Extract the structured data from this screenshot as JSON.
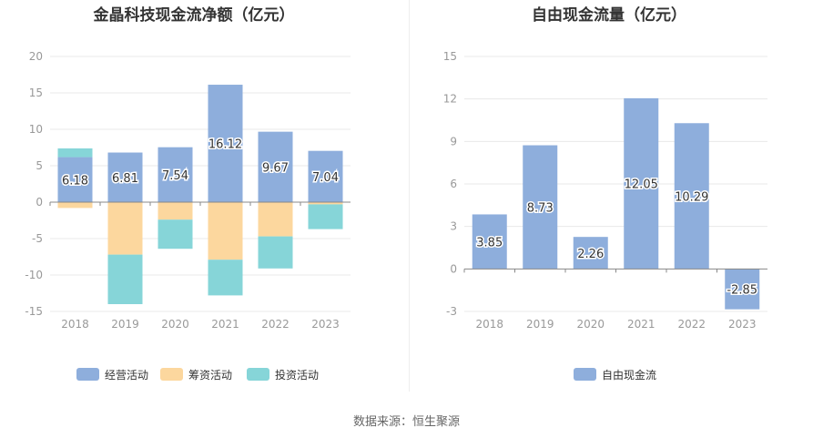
{
  "colors": {
    "operating": "#8eaedc",
    "financing": "#fcd79e",
    "investing": "#86d5d8",
    "free_cash_flow": "#8eaedc"
  },
  "chart_data": [
    {
      "type": "bar",
      "stacked": true,
      "title": "金晶科技现金流净额（亿元）",
      "categories": [
        "2018",
        "2019",
        "2020",
        "2021",
        "2022",
        "2023"
      ],
      "ylim": [
        -15,
        20
      ],
      "yticks": [
        20,
        15,
        10,
        5,
        0,
        -5,
        -10,
        -15
      ],
      "grid": true,
      "legend": "bottom",
      "series": [
        {
          "name": "经营活动",
          "values": [
            6.18,
            6.81,
            7.54,
            16.12,
            9.67,
            7.04
          ],
          "labels": [
            "6.18",
            "6.81",
            "7.54",
            "16.12",
            "9.67",
            "7.04"
          ]
        },
        {
          "name": "筹资活动",
          "values": [
            -0.8,
            -7.2,
            -2.4,
            -7.9,
            -4.7,
            -0.3
          ]
        },
        {
          "name": "投资活动",
          "values": [
            1.2,
            -6.8,
            -4.0,
            -4.9,
            -4.4,
            -3.4
          ]
        }
      ]
    },
    {
      "type": "bar",
      "title": "自由现金流量（亿元）",
      "categories": [
        "2018",
        "2019",
        "2020",
        "2021",
        "2022",
        "2023"
      ],
      "ylim": [
        -3,
        15
      ],
      "yticks": [
        15,
        12,
        9,
        6,
        3,
        0,
        -3
      ],
      "grid": true,
      "legend": "bottom",
      "series": [
        {
          "name": "自由现金流",
          "values": [
            3.85,
            8.73,
            2.26,
            12.05,
            10.29,
            -2.85
          ],
          "labels": [
            "3.85",
            "8.73",
            "2.26",
            "12.05",
            "10.29",
            "-2.85"
          ]
        }
      ]
    }
  ],
  "source_text": "数据来源：恒生聚源"
}
